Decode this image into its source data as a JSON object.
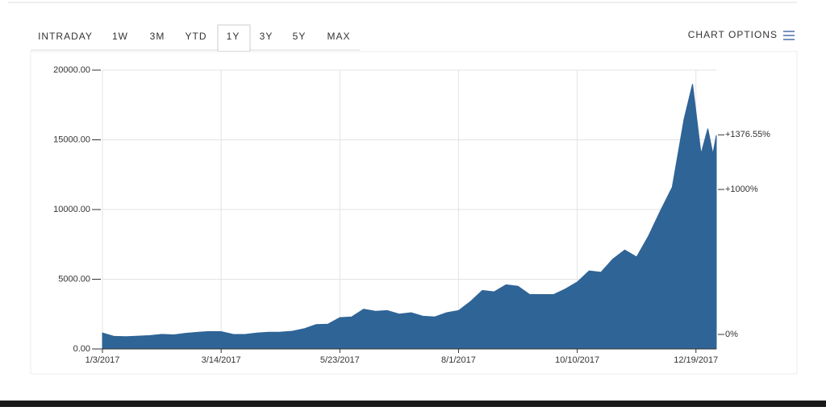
{
  "tabs": [
    "INTRADAY",
    "1W",
    "3M",
    "YTD",
    "1Y",
    "3Y",
    "5Y",
    "MAX"
  ],
  "active_tab": 4,
  "chart_options": "CHART OPTIONS",
  "chart_data": {
    "type": "area",
    "color": "#2f6496",
    "grid": true,
    "x": [
      "1/3/2017",
      "1/10/2017",
      "1/17/2017",
      "1/24/2017",
      "1/31/2017",
      "2/7/2017",
      "2/14/2017",
      "2/21/2017",
      "2/28/2017",
      "3/7/2017",
      "3/14/2017",
      "3/21/2017",
      "3/28/2017",
      "4/4/2017",
      "4/11/2017",
      "4/18/2017",
      "4/25/2017",
      "5/2/2017",
      "5/9/2017",
      "5/16/2017",
      "5/23/2017",
      "5/30/2017",
      "6/6/2017",
      "6/13/2017",
      "6/20/2017",
      "6/27/2017",
      "7/4/2017",
      "7/11/2017",
      "7/18/2017",
      "7/25/2017",
      "8/1/2017",
      "8/8/2017",
      "8/15/2017",
      "8/22/2017",
      "8/29/2017",
      "9/5/2017",
      "9/12/2017",
      "9/19/2017",
      "9/26/2017",
      "10/3/2017",
      "10/10/2017",
      "10/17/2017",
      "10/24/2017",
      "10/31/2017",
      "11/7/2017",
      "11/14/2017",
      "11/21/2017",
      "11/28/2017",
      "12/5/2017",
      "12/12/2017",
      "12/17/2017",
      "12/22/2017",
      "12/26/2017",
      "12/29/2017",
      "12/31/2017"
    ],
    "values": [
      1150,
      900,
      880,
      920,
      960,
      1050,
      1010,
      1120,
      1190,
      1250,
      1240,
      1050,
      1040,
      1140,
      1200,
      1210,
      1270,
      1450,
      1750,
      1780,
      2250,
      2300,
      2850,
      2700,
      2750,
      2500,
      2600,
      2350,
      2300,
      2600,
      2750,
      3400,
      4200,
      4100,
      4600,
      4500,
      3900,
      3900,
      3900,
      4300,
      4800,
      5600,
      5500,
      6450,
      7100,
      6600,
      8100,
      9900,
      11600,
      16500,
      19000,
      14000,
      15800,
      14000,
      15318
    ],
    "xlim": [
      "1/3/2017",
      "12/31/2017"
    ],
    "xticks": [
      "1/3/2017",
      "3/14/2017",
      "5/23/2017",
      "8/1/2017",
      "10/10/2017",
      "12/19/2017"
    ],
    "ylim": [
      0,
      20000
    ],
    "yticks": [
      {
        "value": 0,
        "label": "0.00"
      },
      {
        "value": 5000,
        "label": "5000.00"
      },
      {
        "value": 10000,
        "label": "10000.00"
      },
      {
        "value": 15000,
        "label": "15000.00"
      },
      {
        "value": 20000,
        "label": "20000.00"
      }
    ],
    "y2lim": [
      -100,
      1823
    ],
    "y2ticks": [
      {
        "value": 0,
        "label": "0%"
      },
      {
        "value": 1000,
        "label": "+1000%"
      },
      {
        "value": 1376.55,
        "label": "+1376.55%"
      }
    ],
    "y2_last_color": "#7ac142"
  }
}
